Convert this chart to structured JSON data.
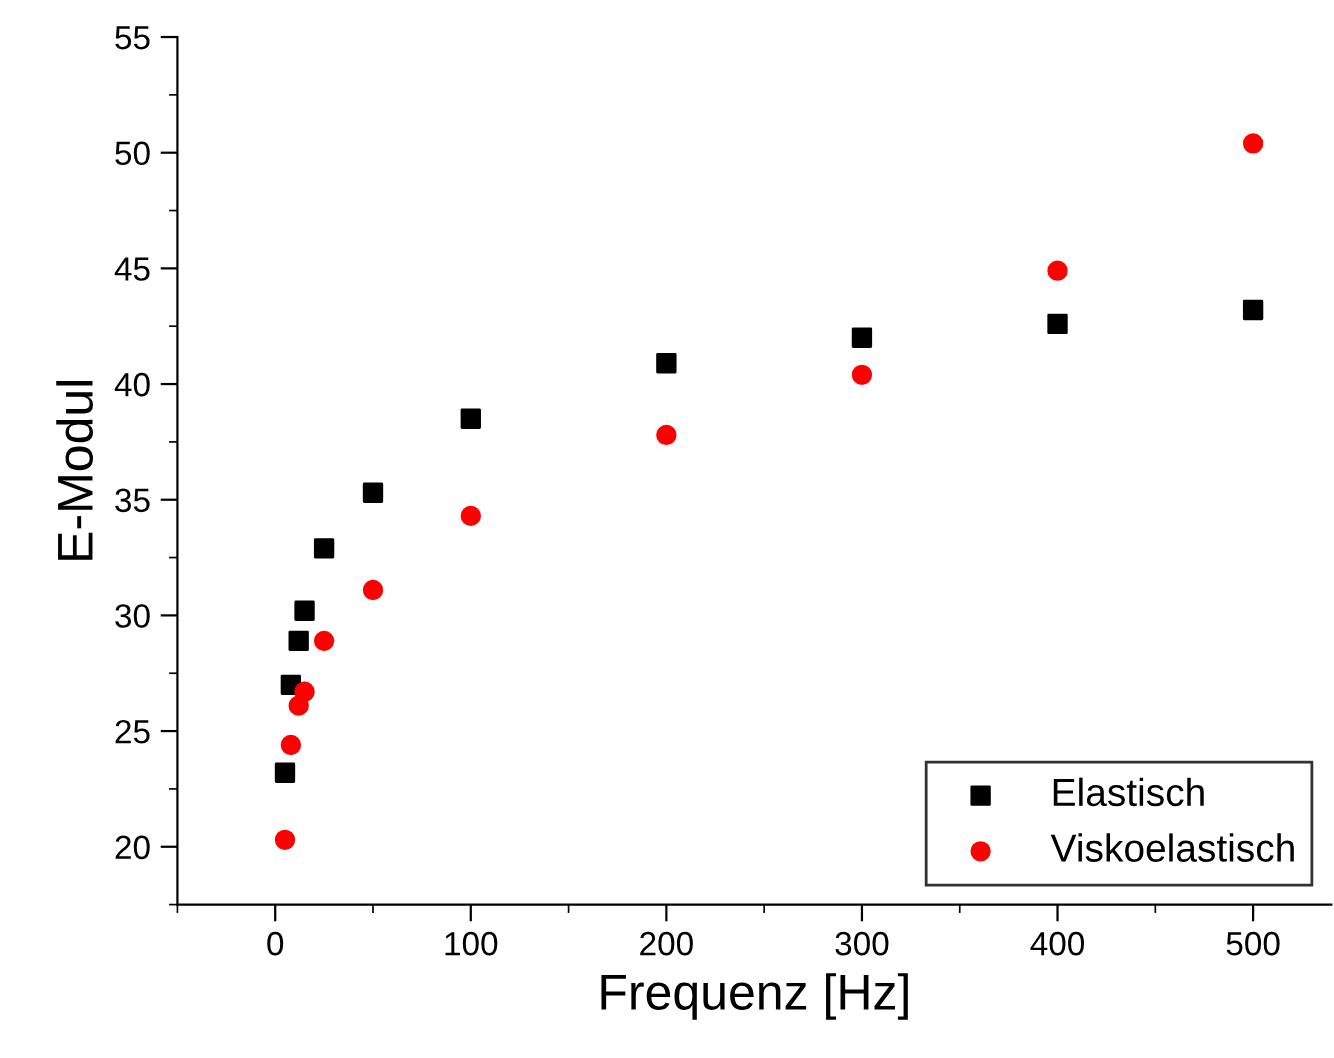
{
  "chart_data": {
    "type": "scatter",
    "xlabel": "Frequenz [Hz]",
    "ylabel": "E-Modul",
    "x": [
      5,
      8,
      12,
      15,
      25,
      50,
      100,
      200,
      300,
      400,
      500
    ],
    "series": [
      {
        "name": "Elastisch",
        "color": "#000000",
        "marker": "square",
        "values": [
          23.2,
          27.0,
          28.9,
          30.2,
          32.9,
          35.3,
          38.5,
          40.9,
          42.0,
          42.6,
          43.2
        ]
      },
      {
        "name": "Viskoelastisch",
        "color": "#ff0000",
        "marker": "circle",
        "values": [
          20.3,
          24.4,
          26.1,
          26.7,
          28.9,
          31.1,
          34.3,
          37.8,
          40.4,
          44.9,
          50.4
        ]
      }
    ],
    "xlim": [
      -50,
      540
    ],
    "ylim": [
      17.5,
      55
    ],
    "xticks": [
      0,
      100,
      200,
      300,
      400,
      500
    ],
    "yticks": [
      20,
      25,
      30,
      35,
      40,
      45,
      50,
      55
    ],
    "legend": "bottom right",
    "grid": false
  }
}
